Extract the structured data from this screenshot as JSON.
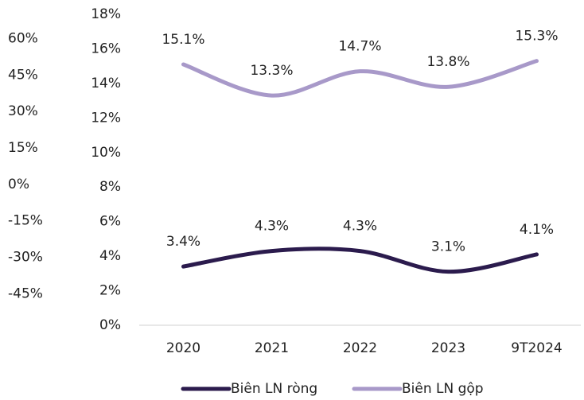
{
  "chart_data": {
    "type": "line",
    "categories": [
      "2020",
      "2021",
      "2022",
      "2023",
      "9T2024"
    ],
    "series": [
      {
        "name": "Biên LN ròng",
        "color": "#2b1b4d",
        "values": [
          3.4,
          4.3,
          4.3,
          3.1,
          4.1
        ],
        "value_labels": [
          "3.4%",
          "4.3%",
          "4.3%",
          "3.1%",
          "4.1%"
        ]
      },
      {
        "name": "Biên LN gộp",
        "color": "#a899c9",
        "values": [
          15.1,
          13.3,
          14.7,
          13.8,
          15.3
        ],
        "value_labels": [
          "15.1%",
          "13.3%",
          "14.7%",
          "13.8%",
          "15.3%"
        ]
      }
    ],
    "ylim": [
      0,
      18
    ],
    "yticks": [
      {
        "value": 0,
        "label": "0%"
      },
      {
        "value": 2,
        "label": "2%"
      },
      {
        "value": 4,
        "label": "4%"
      },
      {
        "value": 6,
        "label": "6%"
      },
      {
        "value": 8,
        "label": "8%"
      },
      {
        "value": 10,
        "label": "10%"
      },
      {
        "value": 12,
        "label": "12%"
      },
      {
        "value": 14,
        "label": "14%"
      },
      {
        "value": 16,
        "label": "16%"
      },
      {
        "value": 18,
        "label": "18%"
      }
    ],
    "y2lim": [
      -58,
      70
    ],
    "y2ticks": [
      {
        "value": -45,
        "label": "-45%"
      },
      {
        "value": -30,
        "label": "-30%"
      },
      {
        "value": -15,
        "label": "-15%"
      },
      {
        "value": 0,
        "label": "0%"
      },
      {
        "value": 15,
        "label": "15%"
      },
      {
        "value": 30,
        "label": "30%"
      },
      {
        "value": 45,
        "label": "45%"
      },
      {
        "value": 60,
        "label": "60%"
      }
    ],
    "legend": "bottom"
  }
}
